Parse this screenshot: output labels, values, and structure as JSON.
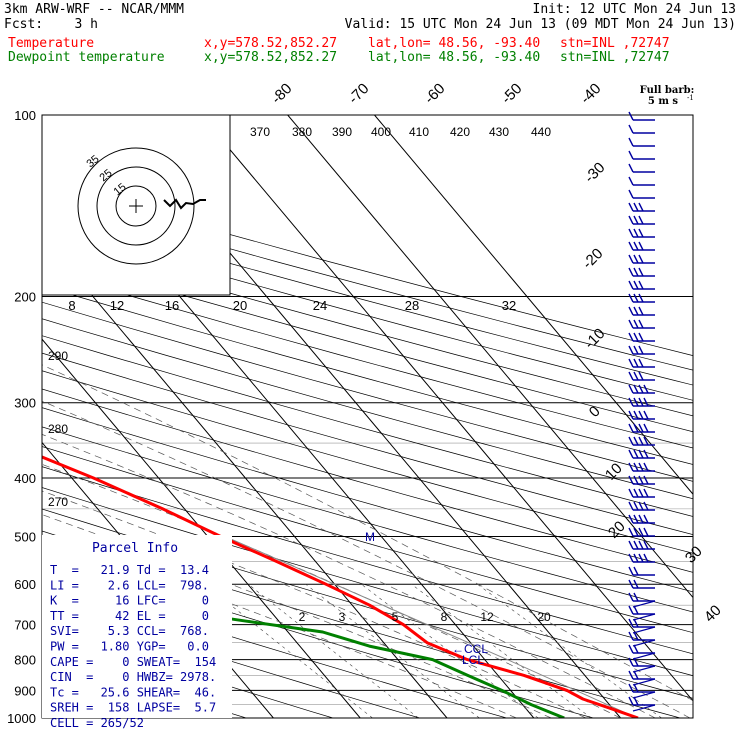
{
  "header": {
    "model": "3km ARW-WRF -- NCAR/MMM",
    "init": "Init: 12 UTC Mon 24 Jun 13",
    "fcst": "Fcst:    3 h",
    "valid": "Valid: 15 UTC Mon 24 Jun 13 (09 MDT Mon 24 Jun 13)",
    "temp_line": {
      "label": "Temperature",
      "xy": "x,y=578.52,852.27",
      "latlon": "lat,lon= 48.56, -93.40",
      "stn": "stn=INL ,72747"
    },
    "dew_line": {
      "label": "Dewpoint temperature",
      "xy": "x,y=578.52,852.27",
      "latlon": "lat,lon= 48.56, -93.40",
      "stn": "stn=INL ,72747"
    },
    "barb_title": "Full barb:",
    "barb_units": "5 m s"
  },
  "colors": {
    "temperature": "#ff0000",
    "dewpoint": "#008000",
    "text_blue": "#0000a0",
    "grid": "#000000",
    "parcel": "#888888"
  },
  "parcel_info": {
    "title": "Parcel Info",
    "rows": [
      "T  =   21.9 Td =  13.4",
      "LI =    2.6 LCL=  798.",
      "K  =     16 LFC=     0",
      "TT =     42 EL =     0",
      "SVI=    5.3 CCL=  768.",
      "PW =   1.80 YGP=   0.0",
      "CAPE =    0 SWEAT=  154",
      "CIN  =    0 HWBZ= 2978.",
      "Tc =   25.6 SHEAR=  46.",
      "SREH =  158 LAPSE=  5.7",
      "CELL = 265/52"
    ]
  },
  "hodograph": {
    "ring_labels": [
      "15",
      "25",
      "35"
    ],
    "kts_label": "kts",
    "speed_labels": [
      "8",
      "12",
      "16",
      "20",
      "24",
      "28",
      "32"
    ]
  },
  "annotations": {
    "ccl": "CCL",
    "lcl": "LCL",
    "m_mark": "M"
  },
  "chart_data": {
    "type": "skew-t",
    "pressure_levels": [
      100,
      200,
      300,
      400,
      500,
      600,
      700,
      800,
      900,
      1000
    ],
    "isotherm_labels": [
      "-80",
      "-70",
      "-60",
      "-50",
      "-40",
      "-30",
      "-20",
      "-10",
      "0",
      "10",
      "20",
      "30",
      "40"
    ],
    "theta_labels": [
      "370",
      "380",
      "390",
      "400",
      "410",
      "420",
      "430",
      "440"
    ],
    "theta_left_labels": [
      "290",
      "280",
      "270"
    ],
    "mixing_ratio_labels": [
      "2",
      "3",
      "5",
      "8",
      "12",
      "20"
    ],
    "temperature": [
      {
        "p": 1000,
        "t": 22
      },
      {
        "p": 960,
        "t": 19.5
      },
      {
        "p": 930,
        "t": 17.5
      },
      {
        "p": 900,
        "t": 16.5
      },
      {
        "p": 850,
        "t": 13
      },
      {
        "p": 800,
        "t": 8
      },
      {
        "p": 750,
        "t": 5
      },
      {
        "p": 700,
        "t": 4
      },
      {
        "p": 650,
        "t": 2
      },
      {
        "p": 600,
        "t": -1
      },
      {
        "p": 550,
        "t": -4.5
      },
      {
        "p": 500,
        "t": -8.5
      },
      {
        "p": 450,
        "t": -12.5
      },
      {
        "p": 400,
        "t": -17.5
      },
      {
        "p": 350,
        "t": -24
      },
      {
        "p": 300,
        "t": -32
      },
      {
        "p": 250,
        "t": -41
      },
      {
        "p": 200,
        "t": -51
      },
      {
        "p": 180,
        "t": -55
      },
      {
        "p": 150,
        "t": -59
      },
      {
        "p": 130,
        "t": -62
      },
      {
        "p": 110,
        "t": -64
      },
      {
        "p": 100,
        "t": -65
      }
    ],
    "dewpoint": [
      {
        "p": 1000,
        "t": 13.5
      },
      {
        "p": 950,
        "t": 11
      },
      {
        "p": 900,
        "t": 9
      },
      {
        "p": 850,
        "t": 6.5
      },
      {
        "p": 800,
        "t": 4
      },
      {
        "p": 760,
        "t": -2
      },
      {
        "p": 720,
        "t": -6
      },
      {
        "p": 690,
        "t": -14
      },
      {
        "p": 660,
        "t": -22
      },
      {
        "p": 640,
        "t": -28
      },
      {
        "p": 600,
        "t": -31
      },
      {
        "p": 550,
        "t": -34
      },
      {
        "p": 500,
        "t": -38
      },
      {
        "p": 450,
        "t": -44
      },
      {
        "p": 400,
        "t": -47
      },
      {
        "p": 350,
        "t": -53
      },
      {
        "p": 300,
        "t": -59
      },
      {
        "p": 250,
        "t": -66
      },
      {
        "p": 220,
        "t": -70
      },
      {
        "p": 200,
        "t": -72
      },
      {
        "p": 180,
        "t": -76
      },
      {
        "p": 150,
        "t": -82
      },
      {
        "p": 120,
        "t": -87
      },
      {
        "p": 100,
        "t": -90
      }
    ]
  }
}
